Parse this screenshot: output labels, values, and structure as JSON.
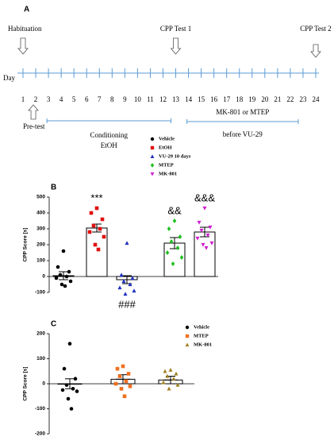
{
  "timeline": {
    "panel_label": "A",
    "axis_label": "Day",
    "days": [
      1,
      2,
      3,
      4,
      5,
      6,
      7,
      8,
      9,
      10,
      11,
      12,
      13,
      14,
      15,
      16,
      17,
      18,
      19,
      20,
      21,
      22,
      23,
      24
    ],
    "events": [
      {
        "label": "Habituation",
        "day": 1,
        "side": "above"
      },
      {
        "label": "Pre-test",
        "day": 2,
        "side": "below"
      },
      {
        "label": "CPP Test 1",
        "day": 13,
        "side": "above"
      },
      {
        "label": "CPP Test 2",
        "day": 24,
        "side": "above"
      }
    ],
    "phases": [
      {
        "label_above": null,
        "labels_below": [
          "Conditioning",
          "EtOH"
        ],
        "from_day": 3,
        "to_day": 13
      },
      {
        "label_above": "MK-801 or MTEP",
        "labels_below": [
          "before VU-29"
        ],
        "from_day": 14,
        "to_day": 23
      }
    ]
  },
  "chart_data": [
    {
      "type": "bar",
      "panel_label": "B",
      "y_label": "CPP Score [s]",
      "ylim": [
        -100,
        500
      ],
      "yticks": [
        -100,
        0,
        100,
        200,
        300,
        400,
        500
      ],
      "series": [
        {
          "name": "Vehicle",
          "color": "#000000",
          "marker": "circle",
          "value": 5,
          "error": 25,
          "points": [
            160,
            60,
            30,
            10,
            0,
            -10,
            -30,
            -50,
            -60
          ]
        },
        {
          "name": "EtOH",
          "color": "#e01010",
          "marker": "square",
          "value": 305,
          "error": 25,
          "points": [
            430,
            400,
            360,
            320,
            300,
            280,
            250,
            200,
            170
          ],
          "annotation": "***",
          "annotation_side": "above"
        },
        {
          "name": "VU-29 10 days",
          "color": "#2030c0",
          "marker": "triangle",
          "value": -20,
          "error": 25,
          "points": [
            210,
            10,
            -10,
            -30,
            -50,
            -70,
            -90,
            -110
          ],
          "annotation": "###",
          "annotation_side": "below"
        },
        {
          "name": "MTEP",
          "color": "#20c020",
          "marker": "diamond",
          "value": 210,
          "error": 35,
          "points": [
            350,
            300,
            250,
            220,
            180,
            150,
            120,
            80
          ],
          "annotation": "&&",
          "annotation_side": "above"
        },
        {
          "name": "MK-801",
          "color": "#d020d0",
          "marker": "triangle-down",
          "value": 280,
          "error": 30,
          "points": [
            430,
            340,
            310,
            290,
            260,
            240,
            210,
            200,
            180
          ],
          "annotation": "&&&",
          "annotation_side": "above"
        }
      ]
    },
    {
      "type": "bar",
      "panel_label": "C",
      "y_label": "CPP Score [s]",
      "ylim": [
        -200,
        200
      ],
      "yticks": [
        -200,
        -100,
        0,
        100,
        200
      ],
      "series": [
        {
          "name": "Vehicle",
          "color": "#000000",
          "marker": "circle",
          "value": 0,
          "error": 20,
          "points": [
            160,
            60,
            20,
            -5,
            -20,
            -25,
            -30,
            -60,
            -100
          ]
        },
        {
          "name": "MTEP",
          "color": "#f07020",
          "marker": "square",
          "value": 18,
          "error": 18,
          "points": [
            70,
            60,
            40,
            30,
            10,
            0,
            -10,
            -20,
            -50
          ]
        },
        {
          "name": "MK-801",
          "color": "#a08020",
          "marker": "triangle",
          "value": 15,
          "error": 15,
          "points": [
            55,
            50,
            40,
            30,
            20,
            5,
            -5,
            -20
          ]
        }
      ]
    }
  ]
}
